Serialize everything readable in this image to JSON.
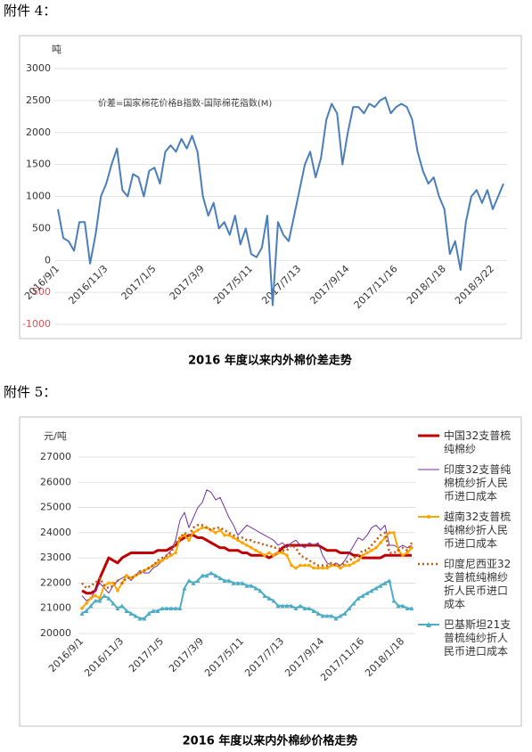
{
  "attachments": [
    "附件 4：",
    "附件 5："
  ],
  "chart_data": [
    {
      "type": "line",
      "title": "2016 年度以来内外棉价差走势",
      "y_unit": "吨",
      "annotation": "价差=国家棉花价格B指数-国际棉花指数(M)",
      "categories": [
        "2016/9/1",
        null,
        null,
        null,
        null,
        null,
        null,
        null,
        null,
        "2016/11/3",
        null,
        null,
        null,
        null,
        null,
        null,
        null,
        null,
        "2017/1/5",
        null,
        null,
        null,
        null,
        null,
        null,
        null,
        null,
        "2017/3/9",
        null,
        null,
        null,
        null,
        null,
        null,
        null,
        null,
        "2017/5/11",
        null,
        null,
        null,
        null,
        null,
        null,
        null,
        null,
        "2017/7/13",
        null,
        null,
        null,
        null,
        null,
        null,
        null,
        null,
        "2017/9/14",
        null,
        null,
        null,
        null,
        null,
        null,
        null,
        null,
        "2017/11/16",
        null,
        null,
        null,
        null,
        null,
        null,
        null,
        null,
        "2018/1/18",
        null,
        null,
        null,
        null,
        null,
        null,
        null,
        null,
        "2018/3/22",
        null,
        null
      ],
      "series": [
        {
          "name": "价差",
          "color": "#4a7ebb",
          "values": [
            800,
            350,
            300,
            150,
            600,
            600,
            -50,
            400,
            1000,
            1200,
            1500,
            1750,
            1100,
            1000,
            1350,
            1300,
            1000,
            1400,
            1450,
            1200,
            1700,
            1800,
            1700,
            1900,
            1750,
            1950,
            1700,
            1000,
            700,
            900,
            500,
            600,
            400,
            700,
            250,
            500,
            100,
            50,
            200,
            700,
            -700,
            600,
            400,
            300,
            700,
            1100,
            1500,
            1700,
            1300,
            1600,
            2200,
            2450,
            2300,
            1500,
            2000,
            2400,
            2400,
            2300,
            2450,
            2400,
            2500,
            2550,
            2300,
            2400,
            2450,
            2400,
            2200,
            1700,
            1400,
            1200,
            1300,
            1000,
            800,
            100,
            300,
            -150,
            600,
            1000,
            1100,
            900,
            1100,
            800,
            1000,
            1200
          ]
        }
      ],
      "ylim": [
        -1000,
        3000
      ],
      "yticks": [
        3000,
        2500,
        2000,
        1500,
        1000,
        500,
        0,
        -500,
        -1000
      ],
      "negative_tick_color": "#e05050",
      "grid": true
    },
    {
      "type": "line",
      "title": "2016 年度以来内外棉纱价格走势",
      "y_unit": "元/吨",
      "categories": [
        "2016/9/1",
        null,
        null,
        null,
        null,
        null,
        null,
        null,
        null,
        "2016/11/3",
        null,
        null,
        null,
        null,
        null,
        null,
        null,
        null,
        "2017/1/5",
        null,
        null,
        null,
        null,
        null,
        null,
        null,
        null,
        "2017/3/9",
        null,
        null,
        null,
        null,
        null,
        null,
        null,
        null,
        "2017/5/11",
        null,
        null,
        null,
        null,
        null,
        null,
        null,
        null,
        "2017/7/13",
        null,
        null,
        null,
        null,
        null,
        null,
        null,
        null,
        "2017/9/14",
        null,
        null,
        null,
        null,
        null,
        null,
        null,
        null,
        "2017/11/16",
        null,
        null,
        null,
        null,
        null,
        null,
        null,
        null,
        "2018/1/18",
        null,
        null
      ],
      "series": [
        {
          "name": "中国32支普梳纯棉纱",
          "color": "#c00000",
          "width": 3,
          "values": [
            21700,
            21600,
            21600,
            21700,
            22200,
            22600,
            23000,
            22900,
            22800,
            23000,
            23100,
            23200,
            23200,
            23200,
            23200,
            23200,
            23200,
            23300,
            23300,
            23300,
            23400,
            23500,
            23700,
            23800,
            23900,
            23900,
            23800,
            23800,
            23700,
            23600,
            23500,
            23400,
            23400,
            23300,
            23300,
            23300,
            23200,
            23200,
            23100,
            23100,
            23100,
            23100,
            23000,
            23100,
            23200,
            23400,
            23500,
            23500,
            23500,
            23500,
            23500,
            23500,
            23500,
            23500,
            23400,
            23300,
            23300,
            23300,
            23200,
            23200,
            23200,
            23100,
            23100,
            23000,
            23000,
            23000,
            23000,
            23000,
            23100,
            23100,
            23100,
            23100,
            23100,
            23100,
            23100
          ]
        },
        {
          "name": "印度32支普纯棉梳纱折人民币进口成本",
          "color": "#7030a0",
          "width": 1,
          "values": [
            21500,
            21300,
            21400,
            21700,
            22000,
            21800,
            21600,
            21900,
            22100,
            22200,
            22300,
            22100,
            22300,
            22500,
            22400,
            22400,
            22600,
            22700,
            22900,
            23100,
            23300,
            23700,
            24500,
            24800,
            24200,
            24600,
            25000,
            25200,
            25700,
            25600,
            25300,
            25400,
            25000,
            24600,
            24300,
            23900,
            24100,
            24300,
            24200,
            24100,
            24000,
            23900,
            23800,
            23700,
            23500,
            23600,
            23400,
            23600,
            23700,
            23500,
            23400,
            23600,
            23500,
            23600,
            23100,
            22800,
            22700,
            22800,
            22700,
            22900,
            23200,
            23500,
            23800,
            23700,
            23900,
            24200,
            24300,
            24100,
            24300,
            23500,
            23500,
            23400,
            23500,
            23400,
            23500
          ]
        },
        {
          "name": "越南32支普梳纯棉纱折人民币进口成本",
          "color": "#ffa500",
          "width": 2,
          "marker": "circle",
          "values": [
            21000,
            21200,
            21400,
            21500,
            21400,
            21900,
            22000,
            22000,
            21700,
            22000,
            22300,
            22200,
            22300,
            22400,
            22500,
            22600,
            22700,
            22800,
            22900,
            23000,
            23100,
            23200,
            23800,
            23900,
            23700,
            24000,
            24100,
            24200,
            24200,
            24100,
            24000,
            24100,
            23900,
            23900,
            23800,
            23700,
            23600,
            23500,
            23400,
            23300,
            23200,
            23100,
            23200,
            23100,
            23200,
            23200,
            23100,
            22700,
            22600,
            22700,
            22700,
            22700,
            22600,
            22600,
            22600,
            22600,
            22700,
            22700,
            22600,
            22700,
            22700,
            22800,
            22900,
            23100,
            23200,
            23300,
            23400,
            23600,
            23800,
            24000,
            24000,
            23300,
            23100,
            23200,
            23400
          ]
        },
        {
          "name": "印度尼西亚32支普梳纯棉纱折人民币进口成本",
          "color": "#c55a11",
          "width": 2.5,
          "dash": "2 3",
          "values": [
            22000,
            21800,
            21900,
            22000,
            22200,
            21900,
            21800,
            21900,
            22100,
            22000,
            22200,
            22200,
            22300,
            22400,
            22500,
            22600,
            22700,
            22900,
            23000,
            23100,
            23200,
            23600,
            23800,
            24000,
            23900,
            24200,
            24300,
            24300,
            24200,
            24100,
            24200,
            24200,
            24100,
            24000,
            23900,
            23800,
            23800,
            23700,
            23700,
            23600,
            23600,
            23500,
            23500,
            23400,
            23400,
            23300,
            23300,
            23500,
            23400,
            23100,
            23000,
            22900,
            22800,
            22700,
            22700,
            22700,
            22800,
            22700,
            22700,
            22800,
            22900,
            23000,
            23100,
            23300,
            23300,
            23500,
            23700,
            23900,
            24000,
            23200,
            23200,
            23300,
            23400,
            23300,
            23600
          ]
        },
        {
          "name": "巴基斯坦21支普梳纯纱折人民币进口成本",
          "color": "#4bacc6",
          "width": 2,
          "marker": "triangle",
          "values": [
            20800,
            20900,
            21100,
            21300,
            21300,
            21500,
            21400,
            21200,
            21000,
            21100,
            20900,
            20800,
            20700,
            20600,
            20600,
            20800,
            20900,
            20900,
            21000,
            21000,
            21000,
            21000,
            21000,
            21800,
            22100,
            22000,
            22100,
            22300,
            22300,
            22400,
            22300,
            22200,
            22100,
            22100,
            22000,
            22000,
            22000,
            21900,
            21900,
            21800,
            21700,
            21500,
            21400,
            21300,
            21100,
            21100,
            21100,
            21100,
            21000,
            21100,
            21000,
            21000,
            20900,
            20800,
            20700,
            20700,
            20700,
            20600,
            20700,
            20800,
            21000,
            21200,
            21400,
            21500,
            21600,
            21700,
            21800,
            21900,
            22000,
            22100,
            21300,
            21100,
            21100,
            21000,
            21000
          ]
        }
      ],
      "ylim": [
        20000,
        27000
      ],
      "yticks": [
        27000,
        26000,
        25000,
        24000,
        23000,
        22000,
        21000,
        20000
      ],
      "grid": true
    }
  ]
}
